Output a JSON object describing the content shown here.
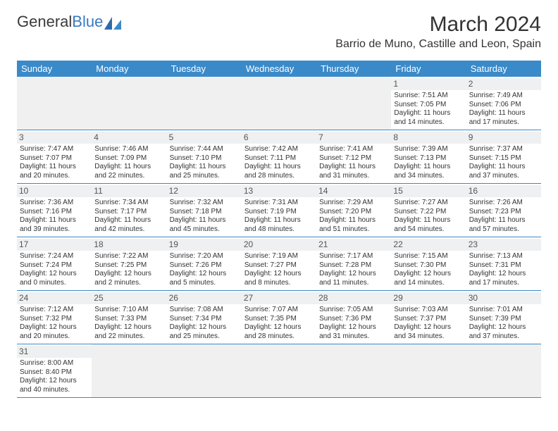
{
  "logo": {
    "text1": "General",
    "text2": "Blue"
  },
  "title": "March 2024",
  "location": "Barrio de Muno, Castille and Leon, Spain",
  "colors": {
    "header_bg": "#3a8ac9",
    "header_text": "#ffffff",
    "border": "#3a8ac9",
    "daynum_bg": "#eef0f1",
    "empty_bg": "#f0f0f0",
    "logo_blue": "#3a7bbf"
  },
  "weekdays": [
    "Sunday",
    "Monday",
    "Tuesday",
    "Wednesday",
    "Thursday",
    "Friday",
    "Saturday"
  ],
  "weeks": [
    [
      null,
      null,
      null,
      null,
      null,
      {
        "n": "1",
        "sunrise": "Sunrise: 7:51 AM",
        "sunset": "Sunset: 7:05 PM",
        "daylight": "Daylight: 11 hours and 14 minutes."
      },
      {
        "n": "2",
        "sunrise": "Sunrise: 7:49 AM",
        "sunset": "Sunset: 7:06 PM",
        "daylight": "Daylight: 11 hours and 17 minutes."
      }
    ],
    [
      {
        "n": "3",
        "sunrise": "Sunrise: 7:47 AM",
        "sunset": "Sunset: 7:07 PM",
        "daylight": "Daylight: 11 hours and 20 minutes."
      },
      {
        "n": "4",
        "sunrise": "Sunrise: 7:46 AM",
        "sunset": "Sunset: 7:09 PM",
        "daylight": "Daylight: 11 hours and 22 minutes."
      },
      {
        "n": "5",
        "sunrise": "Sunrise: 7:44 AM",
        "sunset": "Sunset: 7:10 PM",
        "daylight": "Daylight: 11 hours and 25 minutes."
      },
      {
        "n": "6",
        "sunrise": "Sunrise: 7:42 AM",
        "sunset": "Sunset: 7:11 PM",
        "daylight": "Daylight: 11 hours and 28 minutes."
      },
      {
        "n": "7",
        "sunrise": "Sunrise: 7:41 AM",
        "sunset": "Sunset: 7:12 PM",
        "daylight": "Daylight: 11 hours and 31 minutes."
      },
      {
        "n": "8",
        "sunrise": "Sunrise: 7:39 AM",
        "sunset": "Sunset: 7:13 PM",
        "daylight": "Daylight: 11 hours and 34 minutes."
      },
      {
        "n": "9",
        "sunrise": "Sunrise: 7:37 AM",
        "sunset": "Sunset: 7:15 PM",
        "daylight": "Daylight: 11 hours and 37 minutes."
      }
    ],
    [
      {
        "n": "10",
        "sunrise": "Sunrise: 7:36 AM",
        "sunset": "Sunset: 7:16 PM",
        "daylight": "Daylight: 11 hours and 39 minutes."
      },
      {
        "n": "11",
        "sunrise": "Sunrise: 7:34 AM",
        "sunset": "Sunset: 7:17 PM",
        "daylight": "Daylight: 11 hours and 42 minutes."
      },
      {
        "n": "12",
        "sunrise": "Sunrise: 7:32 AM",
        "sunset": "Sunset: 7:18 PM",
        "daylight": "Daylight: 11 hours and 45 minutes."
      },
      {
        "n": "13",
        "sunrise": "Sunrise: 7:31 AM",
        "sunset": "Sunset: 7:19 PM",
        "daylight": "Daylight: 11 hours and 48 minutes."
      },
      {
        "n": "14",
        "sunrise": "Sunrise: 7:29 AM",
        "sunset": "Sunset: 7:20 PM",
        "daylight": "Daylight: 11 hours and 51 minutes."
      },
      {
        "n": "15",
        "sunrise": "Sunrise: 7:27 AM",
        "sunset": "Sunset: 7:22 PM",
        "daylight": "Daylight: 11 hours and 54 minutes."
      },
      {
        "n": "16",
        "sunrise": "Sunrise: 7:26 AM",
        "sunset": "Sunset: 7:23 PM",
        "daylight": "Daylight: 11 hours and 57 minutes."
      }
    ],
    [
      {
        "n": "17",
        "sunrise": "Sunrise: 7:24 AM",
        "sunset": "Sunset: 7:24 PM",
        "daylight": "Daylight: 12 hours and 0 minutes."
      },
      {
        "n": "18",
        "sunrise": "Sunrise: 7:22 AM",
        "sunset": "Sunset: 7:25 PM",
        "daylight": "Daylight: 12 hours and 2 minutes."
      },
      {
        "n": "19",
        "sunrise": "Sunrise: 7:20 AM",
        "sunset": "Sunset: 7:26 PM",
        "daylight": "Daylight: 12 hours and 5 minutes."
      },
      {
        "n": "20",
        "sunrise": "Sunrise: 7:19 AM",
        "sunset": "Sunset: 7:27 PM",
        "daylight": "Daylight: 12 hours and 8 minutes."
      },
      {
        "n": "21",
        "sunrise": "Sunrise: 7:17 AM",
        "sunset": "Sunset: 7:28 PM",
        "daylight": "Daylight: 12 hours and 11 minutes."
      },
      {
        "n": "22",
        "sunrise": "Sunrise: 7:15 AM",
        "sunset": "Sunset: 7:30 PM",
        "daylight": "Daylight: 12 hours and 14 minutes."
      },
      {
        "n": "23",
        "sunrise": "Sunrise: 7:13 AM",
        "sunset": "Sunset: 7:31 PM",
        "daylight": "Daylight: 12 hours and 17 minutes."
      }
    ],
    [
      {
        "n": "24",
        "sunrise": "Sunrise: 7:12 AM",
        "sunset": "Sunset: 7:32 PM",
        "daylight": "Daylight: 12 hours and 20 minutes."
      },
      {
        "n": "25",
        "sunrise": "Sunrise: 7:10 AM",
        "sunset": "Sunset: 7:33 PM",
        "daylight": "Daylight: 12 hours and 22 minutes."
      },
      {
        "n": "26",
        "sunrise": "Sunrise: 7:08 AM",
        "sunset": "Sunset: 7:34 PM",
        "daylight": "Daylight: 12 hours and 25 minutes."
      },
      {
        "n": "27",
        "sunrise": "Sunrise: 7:07 AM",
        "sunset": "Sunset: 7:35 PM",
        "daylight": "Daylight: 12 hours and 28 minutes."
      },
      {
        "n": "28",
        "sunrise": "Sunrise: 7:05 AM",
        "sunset": "Sunset: 7:36 PM",
        "daylight": "Daylight: 12 hours and 31 minutes."
      },
      {
        "n": "29",
        "sunrise": "Sunrise: 7:03 AM",
        "sunset": "Sunset: 7:37 PM",
        "daylight": "Daylight: 12 hours and 34 minutes."
      },
      {
        "n": "30",
        "sunrise": "Sunrise: 7:01 AM",
        "sunset": "Sunset: 7:39 PM",
        "daylight": "Daylight: 12 hours and 37 minutes."
      }
    ],
    [
      {
        "n": "31",
        "sunrise": "Sunrise: 8:00 AM",
        "sunset": "Sunset: 8:40 PM",
        "daylight": "Daylight: 12 hours and 40 minutes."
      },
      null,
      null,
      null,
      null,
      null,
      null
    ]
  ]
}
